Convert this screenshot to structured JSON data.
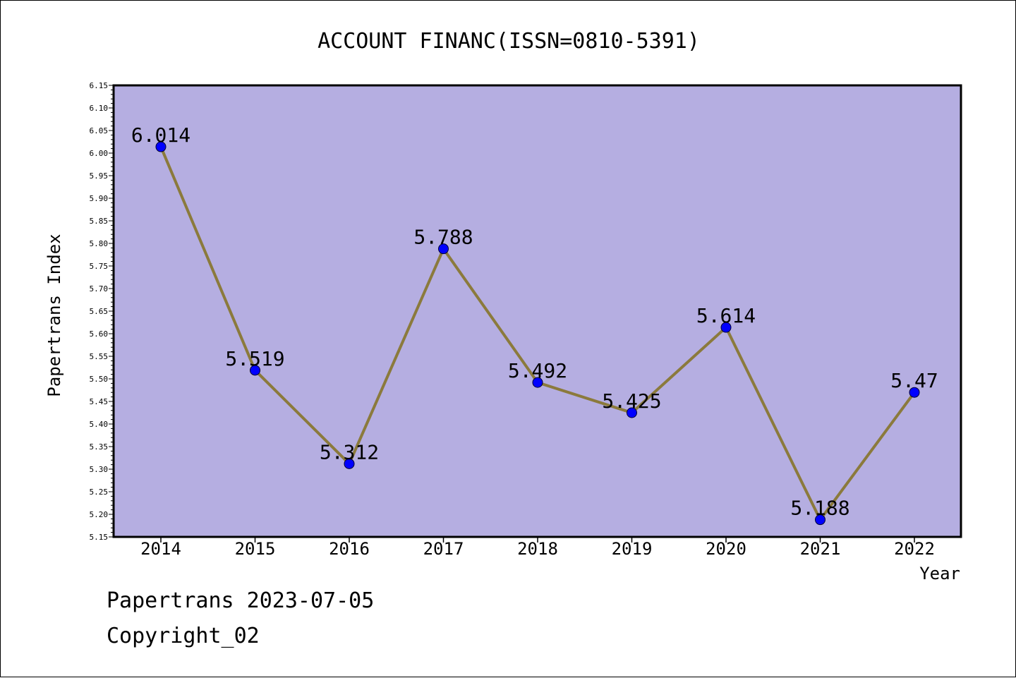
{
  "chart_data": {
    "type": "line",
    "title": "ACCOUNT FINANC(ISSN=0810-5391)",
    "xlabel": "Year",
    "ylabel": "Papertrans Index",
    "categories": [
      "2014",
      "2015",
      "2016",
      "2017",
      "2018",
      "2019",
      "2020",
      "2021",
      "2022"
    ],
    "series": [
      {
        "values": [
          6.014,
          5.519,
          5.312,
          5.788,
          5.492,
          5.425,
          5.614,
          5.188,
          5.47
        ],
        "labels": [
          "6.014",
          "5.519",
          "5.312",
          "5.788",
          "5.492",
          "5.425",
          "5.614",
          "5.188",
          "5.47"
        ]
      }
    ],
    "ylim": [
      5.15,
      6.15
    ],
    "yticks": [
      "5.15",
      "5.20",
      "5.25",
      "5.30",
      "5.35",
      "5.40",
      "5.45",
      "5.50",
      "5.55",
      "5.60",
      "5.65",
      "5.70",
      "5.75",
      "5.80",
      "5.85",
      "5.90",
      "5.95",
      "6.00",
      "6.05",
      "6.10",
      "6.15"
    ],
    "grid": false,
    "legend": "none",
    "colors": {
      "plot_background": "#b5aee1",
      "line": "#8b7a3c",
      "marker": "#0000ff",
      "axis": "#000000"
    }
  },
  "footer": {
    "line1": "Papertrans 2023-07-05",
    "line2": "Copyright_02"
  }
}
